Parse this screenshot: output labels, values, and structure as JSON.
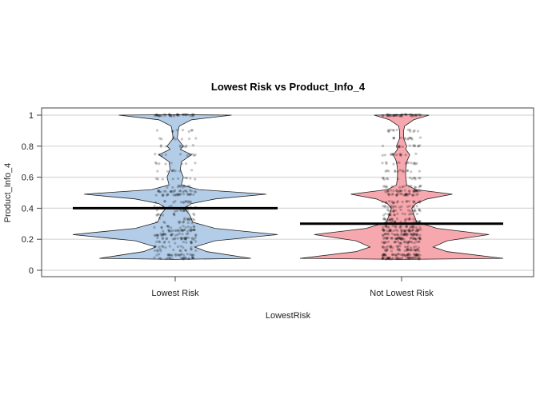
{
  "chart_data": {
    "type": "pirate-violin",
    "title": "Lowest Risk vs Product_Info_4",
    "xlabel": "LowestRisk",
    "ylabel": "Product_Info_4",
    "ylim": [
      0,
      1
    ],
    "yticks": [
      "0",
      "0.2",
      "0.4",
      "0.6",
      "0.8",
      "1"
    ],
    "ytick_values": [
      0,
      0.2,
      0.4,
      0.6,
      0.8,
      1
    ],
    "grid": true,
    "categories": [
      "Lowest Risk",
      "Not Lowest Risk"
    ],
    "means": [
      0.4,
      0.3
    ],
    "colors": [
      "#b3cde8",
      "#f7a8ae"
    ],
    "density": [
      [
        [
          0.07,
          0
        ],
        [
          0.077,
          0.74
        ],
        [
          0.12,
          0.31
        ],
        [
          0.15,
          0.19
        ],
        [
          0.19,
          0.39
        ],
        [
          0.23,
          1.0
        ],
        [
          0.27,
          0.39
        ],
        [
          0.31,
          0.17
        ],
        [
          0.36,
          0.14
        ],
        [
          0.4,
          0.09
        ],
        [
          0.43,
          0.16
        ],
        [
          0.46,
          0.39
        ],
        [
          0.49,
          0.89
        ],
        [
          0.52,
          0.23
        ],
        [
          0.55,
          0.06
        ],
        [
          0.6,
          0.08
        ],
        [
          0.65,
          0.05
        ],
        [
          0.7,
          0.06
        ],
        [
          0.745,
          0.16
        ],
        [
          0.78,
          0.05
        ],
        [
          0.8,
          0.08
        ],
        [
          0.85,
          0.02
        ],
        [
          0.9,
          0.03
        ],
        [
          0.93,
          0.04
        ],
        [
          0.97,
          0.16
        ],
        [
          1.0,
          0.55
        ],
        [
          1.003,
          0
        ]
      ],
      [
        [
          0.07,
          0
        ],
        [
          0.077,
          1.0
        ],
        [
          0.12,
          0.45
        ],
        [
          0.15,
          0.31
        ],
        [
          0.19,
          0.45
        ],
        [
          0.23,
          0.86
        ],
        [
          0.27,
          0.35
        ],
        [
          0.31,
          0.15
        ],
        [
          0.36,
          0.12
        ],
        [
          0.4,
          0.1
        ],
        [
          0.43,
          0.14
        ],
        [
          0.46,
          0.25
        ],
        [
          0.49,
          0.5
        ],
        [
          0.52,
          0.14
        ],
        [
          0.55,
          0.05
        ],
        [
          0.6,
          0.04
        ],
        [
          0.65,
          0.04
        ],
        [
          0.7,
          0.05
        ],
        [
          0.745,
          0.08
        ],
        [
          0.78,
          0.04
        ],
        [
          0.8,
          0.05
        ],
        [
          0.85,
          0.02
        ],
        [
          0.9,
          0.02
        ],
        [
          0.93,
          0.03
        ],
        [
          0.97,
          0.12
        ],
        [
          1.0,
          0.27
        ],
        [
          1.003,
          0
        ]
      ]
    ]
  }
}
